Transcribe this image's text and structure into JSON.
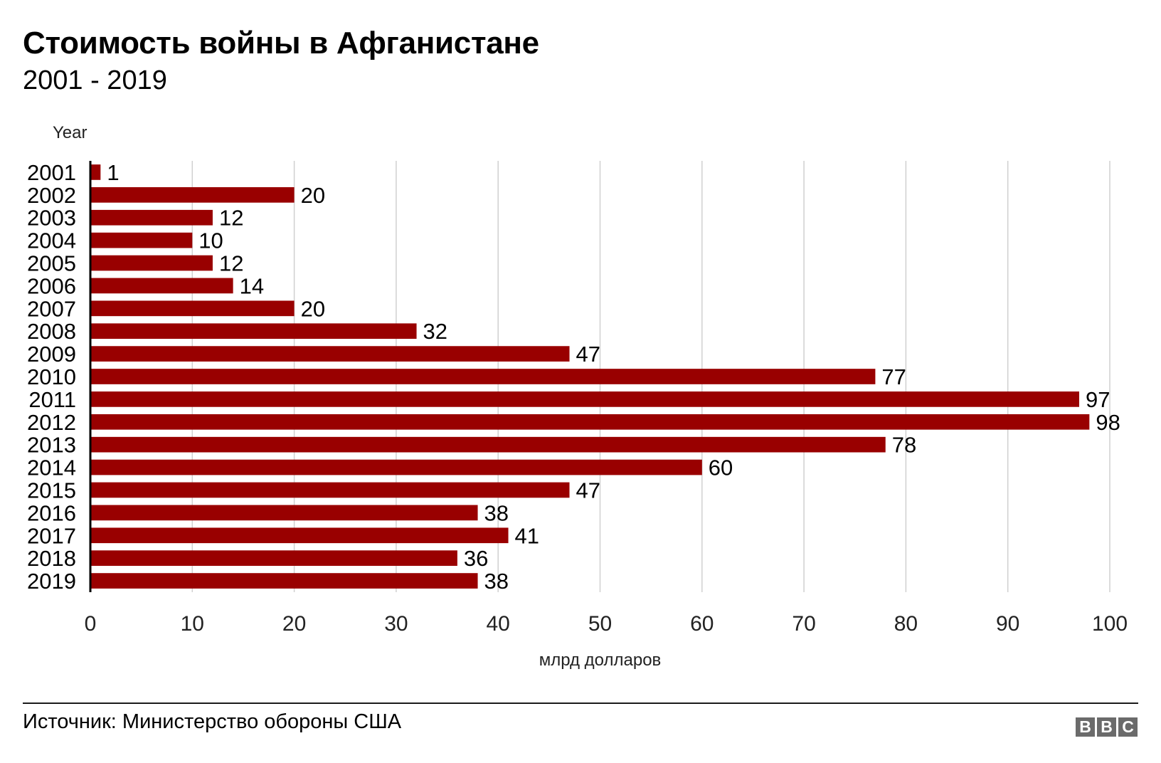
{
  "header": {
    "title": "Стоимость войны в Афганистане",
    "subtitle": "2001 - 2019"
  },
  "footer": {
    "source": "Источник: Министерство обороны США",
    "logo_letters": [
      "B",
      "B",
      "C"
    ]
  },
  "colors": {
    "bar": "#990000",
    "grid": "#d0d0d0",
    "axis": "#000000"
  },
  "chart_data": {
    "type": "bar",
    "orientation": "horizontal",
    "ylabel": "Year",
    "xlabel": "млрд долларов",
    "xlim": [
      0,
      100
    ],
    "xticks": [
      0,
      10,
      20,
      30,
      40,
      50,
      60,
      70,
      80,
      90,
      100
    ],
    "grid": true,
    "data_labels": true,
    "categories": [
      "2001",
      "2002",
      "2003",
      "2004",
      "2005",
      "2006",
      "2007",
      "2008",
      "2009",
      "2010",
      "2011",
      "2012",
      "2013",
      "2014",
      "2015",
      "2016",
      "2017",
      "2018",
      "2019"
    ],
    "values": [
      1,
      20,
      12,
      10,
      12,
      14,
      20,
      32,
      47,
      77,
      97,
      98,
      78,
      60,
      47,
      38,
      41,
      36,
      38
    ]
  }
}
